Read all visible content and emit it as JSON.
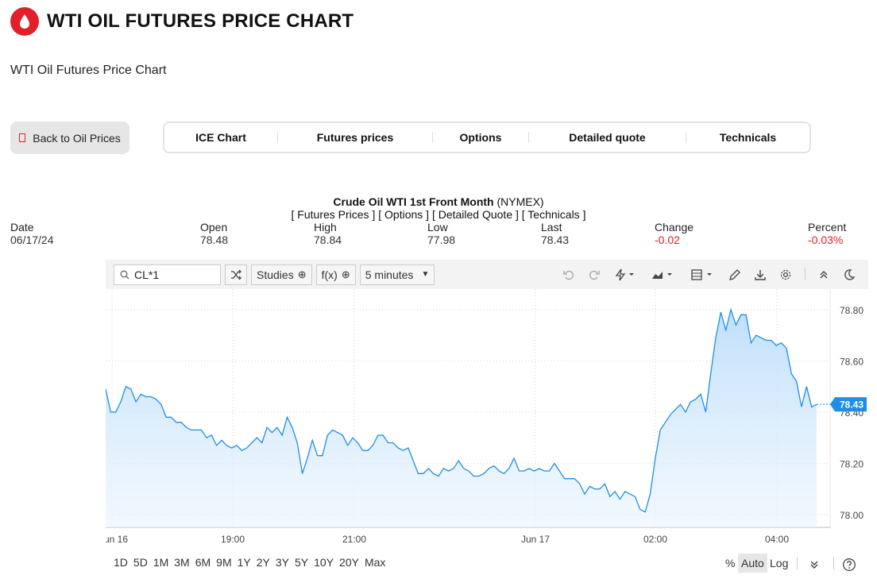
{
  "header": {
    "title": "WTI OIL FUTURES PRICE CHART",
    "subtitle": "WTI Oil Futures Price Chart"
  },
  "back_button": {
    "label": "Back to Oil Prices"
  },
  "tabs": [
    {
      "label": "ICE Chart"
    },
    {
      "label": "Futures prices"
    },
    {
      "label": "Options"
    },
    {
      "label": "Detailed quote"
    },
    {
      "label": "Technicals"
    }
  ],
  "quote": {
    "name": "Crude Oil WTI 1st Front Month",
    "exchange": "(NYMEX)",
    "links": [
      "[ Futures Prices ]",
      "[ Options ]",
      "[ Detailed Quote ]",
      "[ Technicals ]"
    ],
    "fields": [
      {
        "label": "Date",
        "value": "06/17/24"
      },
      {
        "label": "Open",
        "value": "78.48"
      },
      {
        "label": "High",
        "value": "78.84"
      },
      {
        "label": "Low",
        "value": "77.98"
      },
      {
        "label": "Last",
        "value": "78.43"
      },
      {
        "label": "Change",
        "value": "-0.02"
      },
      {
        "label": "Percent",
        "value": "-0.03%"
      }
    ],
    "negative_color": "#e3202a"
  },
  "toolbar": {
    "symbol": "CL*1",
    "studies_label": "Studies",
    "fx_label": "f(x)",
    "interval_label": "5 minutes",
    "icons": [
      "undo-icon",
      "redo-icon",
      "lightning-icon",
      "chart-type-icon",
      "layout-icon",
      "pencil-icon",
      "download-icon",
      "gear-icon",
      "collapse-icon",
      "moon-icon"
    ]
  },
  "chart_data": {
    "type": "area",
    "symbol": "CL*1",
    "interval": "5 minutes",
    "y_ticks": [
      "78.80",
      "78.60",
      "78.40",
      "78.20",
      "78.00"
    ],
    "ylim": [
      77.95,
      78.88
    ],
    "x_ticks": [
      "un 16",
      "19:00",
      "21:00",
      "Jun 17",
      "02:00",
      "04:00"
    ],
    "x_range": [
      0,
      20
    ],
    "last_value": "78.43",
    "accent_color": "#1f8ee8",
    "series": [
      {
        "values": [
          78.49,
          78.4,
          78.4,
          78.44,
          78.5,
          78.49,
          78.44,
          78.47,
          78.46,
          78.46,
          78.45,
          78.43,
          78.38,
          78.38,
          78.36,
          78.36,
          78.34,
          78.33,
          78.33,
          78.33,
          78.3,
          78.31,
          78.27,
          78.29,
          78.27,
          78.26,
          78.27,
          78.25,
          78.26,
          78.28,
          78.3,
          78.28,
          78.34,
          78.32,
          78.34,
          78.31,
          78.38,
          78.34,
          78.28,
          78.16,
          78.22,
          78.29,
          78.23,
          78.23,
          78.31,
          78.33,
          78.32,
          78.31,
          78.27,
          78.3,
          78.28,
          78.25,
          78.25,
          78.27,
          78.31,
          78.31,
          78.28,
          78.28,
          78.26,
          78.25,
          78.26,
          78.21,
          78.16,
          78.16,
          78.18,
          78.16,
          78.15,
          78.18,
          78.17,
          78.18,
          78.21,
          78.18,
          78.17,
          78.15,
          78.15,
          78.16,
          78.18,
          78.19,
          78.17,
          78.16,
          78.18,
          78.22,
          78.17,
          78.17,
          78.18,
          78.17,
          78.18,
          78.17,
          78.17,
          78.2,
          78.17,
          78.14,
          78.14,
          78.14,
          78.12,
          78.08,
          78.11,
          78.1,
          78.1,
          78.12,
          78.07,
          78.09,
          78.06,
          78.09,
          78.08,
          78.07,
          78.02,
          78.01,
          78.08,
          78.22,
          78.33,
          78.36,
          78.39,
          78.41,
          78.43,
          78.4,
          78.44,
          78.45,
          78.47,
          78.4,
          78.55,
          78.69,
          78.79,
          78.72,
          78.8,
          78.74,
          78.78,
          78.78,
          78.67,
          78.7,
          78.69,
          78.68,
          78.68,
          78.66,
          78.67,
          78.65,
          78.55,
          78.52,
          78.42,
          78.5,
          78.42,
          78.43
        ]
      }
    ]
  },
  "ranges": [
    "1D",
    "5D",
    "1M",
    "3M",
    "6M",
    "9M",
    "1Y",
    "2Y",
    "3Y",
    "5Y",
    "10Y",
    "20Y",
    "Max"
  ],
  "scale_options": {
    "percent": "%",
    "auto": "Auto",
    "log": "Log"
  }
}
